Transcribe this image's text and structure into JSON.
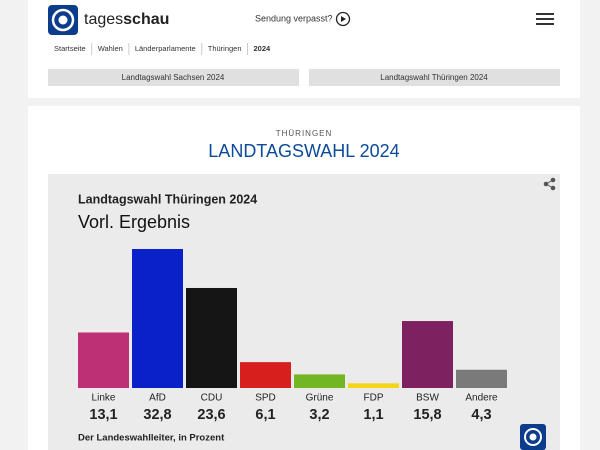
{
  "header": {
    "brand": [
      "tages",
      "schau"
    ],
    "missed": "Sendung verpasst?",
    "breadcrumbs": [
      "Startseite",
      "Wahlen",
      "Länderparlamente",
      "Thüringen",
      "2024"
    ],
    "buttons": [
      "Landtagswahl Sachsen 2024",
      "Landtagswahl Thüringen 2024"
    ]
  },
  "section": {
    "kicker": "THÜRINGEN",
    "title": "LANDTAGSWAHL 2024"
  },
  "chart_data": {
    "type": "bar",
    "title": "Landtagswahl Thüringen 2024",
    "subtitle": "Vorl. Ergebnis",
    "categories": [
      "Linke",
      "AfD",
      "CDU",
      "SPD",
      "Grüne",
      "FDP",
      "BSW",
      "Andere"
    ],
    "values": [
      13.1,
      32.8,
      23.6,
      6.1,
      3.2,
      1.1,
      15.8,
      4.3
    ],
    "value_labels": [
      "13,1",
      "32,8",
      "23,6",
      "6,1",
      "3,2",
      "1,1",
      "15,8",
      "4,3"
    ],
    "colors": [
      "#be3075",
      "#0a21c9",
      "#151515",
      "#d71f1d",
      "#72b626",
      "#f5d517",
      "#7d2160",
      "#7a7a7a"
    ],
    "source": "Der Landeswahlleiter, in Prozent"
  }
}
